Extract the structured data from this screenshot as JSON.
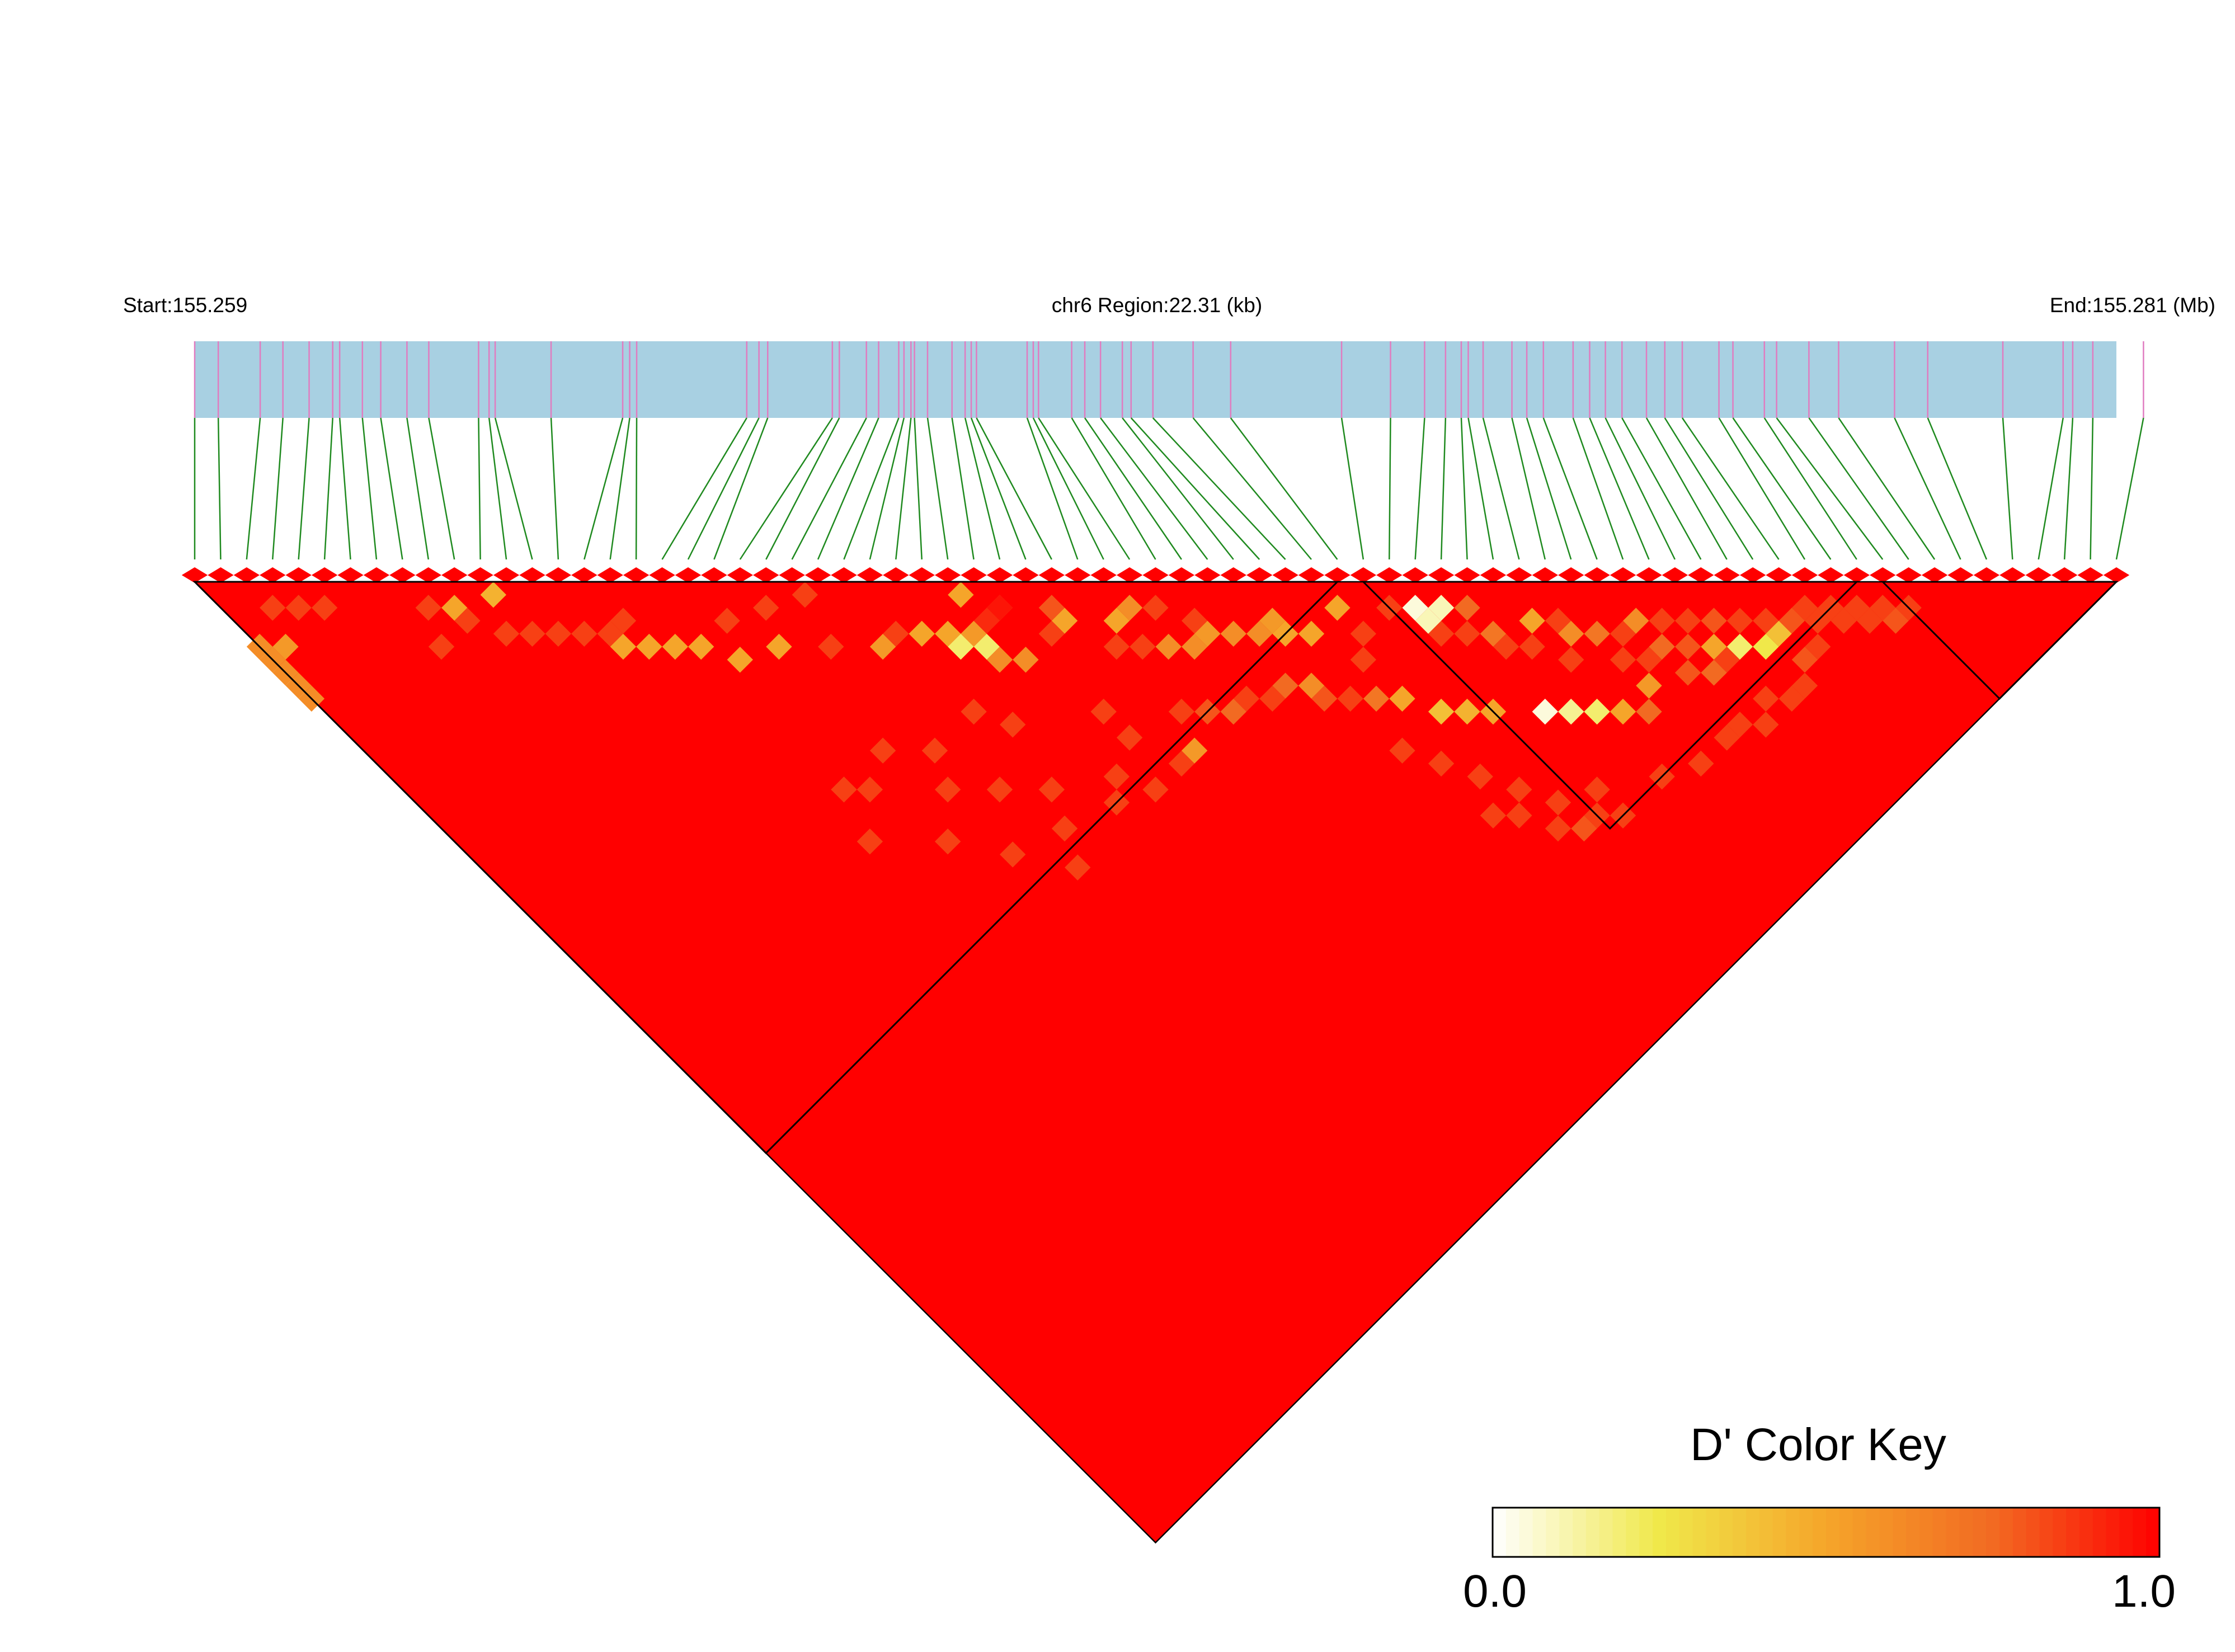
{
  "chart_data": {
    "type": "heatmap",
    "header": {
      "start_label": "Start:155.259",
      "region_label": "chr6 Region:22.31 (kb)",
      "end_label": "End:155.281 (Mb)"
    },
    "region_start_mb": 155.259,
    "region_end_mb": 155.281,
    "snp_count": 75,
    "snp_positions_kb": [
      0.0,
      0.27,
      0.75,
      1.01,
      1.31,
      1.58,
      1.66,
      1.92,
      2.13,
      2.43,
      2.68,
      3.25,
      3.37,
      3.44,
      4.08,
      4.9,
      4.98,
      5.06,
      6.32,
      6.46,
      6.56,
      7.3,
      7.38,
      7.69,
      7.83,
      8.06,
      8.12,
      8.2,
      8.24,
      8.39,
      8.67,
      8.82,
      8.89,
      8.95,
      9.53,
      9.6,
      9.66,
      10.04,
      10.19,
      10.37,
      10.62,
      10.72,
      10.97,
      11.43,
      11.86,
      13.13,
      13.69,
      14.08,
      14.32,
      14.5,
      14.58,
      14.75,
      15.08,
      15.25,
      15.44,
      15.78,
      15.97,
      16.15,
      16.34,
      16.62,
      16.83,
      17.03,
      17.45,
      17.61,
      17.97,
      18.11,
      18.48,
      18.82,
      19.46,
      19.84,
      20.7,
      21.39,
      21.5,
      21.73,
      22.31
    ],
    "color_key": {
      "title": "D' Color Key",
      "min_label": "0.0",
      "max_label": "1.0",
      "min": 0.0,
      "max": 1.0,
      "stops": [
        "#ffffff",
        "#f0e84a",
        "#f5a52a",
        "#f26a22",
        "#ff0000"
      ]
    },
    "default_dprime": 1.0,
    "blocks": [
      {
        "name": "block1",
        "from_snp": 1,
        "to_snp": 45
      },
      {
        "name": "block2",
        "from_snp": 46,
        "to_snp": 65
      },
      {
        "name": "block3",
        "from_snp": 66,
        "to_snp": 75
      }
    ],
    "dprime_cells": [
      [
        1,
        6,
        0.6
      ],
      [
        1,
        7,
        0.6
      ],
      [
        1,
        8,
        0.6
      ],
      [
        1,
        9,
        0.6
      ],
      [
        1,
        10,
        0.6
      ],
      [
        2,
        7,
        0.55
      ],
      [
        3,
        5,
        0.85
      ],
      [
        4,
        6,
        0.85
      ],
      [
        5,
        7,
        0.85
      ],
      [
        9,
        11,
        0.85
      ],
      [
        10,
        12,
        0.5
      ],
      [
        10,
        13,
        0.85
      ],
      [
        11,
        15,
        0.85
      ],
      [
        8,
        13,
        0.85
      ],
      [
        12,
        13,
        0.45
      ],
      [
        12,
        16,
        0.85
      ],
      [
        13,
        17,
        0.85
      ],
      [
        14,
        18,
        0.85
      ],
      [
        15,
        19,
        0.85
      ],
      [
        16,
        19,
        0.85
      ],
      [
        15,
        20,
        0.5
      ],
      [
        16,
        21,
        0.5
      ],
      [
        17,
        22,
        0.5
      ],
      [
        18,
        23,
        0.5
      ],
      [
        19,
        25,
        0.5
      ],
      [
        21,
        26,
        0.5
      ],
      [
        20,
        23,
        0.85
      ],
      [
        22,
        24,
        0.85
      ],
      [
        24,
        25,
        0.85
      ],
      [
        25,
        30,
        0.55
      ],
      [
        23,
        28,
        0.85
      ],
      [
        27,
        31,
        0.5
      ],
      [
        28,
        32,
        0.5
      ],
      [
        29,
        33,
        0.55
      ],
      [
        30,
        33,
        0.9
      ],
      [
        26,
        30,
        0.85
      ],
      [
        31,
        33,
        0.7
      ],
      [
        28,
        33,
        0.2
      ],
      [
        29,
        34,
        0.2
      ],
      [
        29,
        35,
        0.6
      ],
      [
        30,
        36,
        0.6
      ],
      [
        30,
        31,
        0.5
      ],
      [
        31,
        33,
        0.95
      ],
      [
        33,
        36,
        0.5
      ],
      [
        33,
        35,
        0.8
      ],
      [
        35,
        38,
        0.5
      ],
      [
        36,
        38,
        0.6
      ],
      [
        32,
        36,
        0.85
      ],
      [
        37,
        39,
        0.85
      ],
      [
        38,
        41,
        0.85
      ],
      [
        39,
        43,
        0.6
      ],
      [
        40,
        44,
        0.6
      ],
      [
        41,
        44,
        0.55
      ],
      [
        41,
        45,
        0.5
      ],
      [
        42,
        46,
        0.5
      ],
      [
        36,
        41,
        0.6
      ],
      [
        37,
        42,
        0.6
      ],
      [
        38,
        42,
        0.55
      ],
      [
        44,
        46,
        0.5
      ],
      [
        34,
        39,
        0.85
      ],
      [
        35,
        40,
        0.85
      ],
      [
        31,
        41,
        0.85
      ],
      [
        27,
        38,
        0.85
      ],
      [
        26,
        36,
        0.85
      ],
      [
        23,
        36,
        0.85
      ],
      [
        21,
        34,
        0.85
      ],
      [
        19,
        35,
        0.85
      ],
      [
        17,
        37,
        0.85
      ],
      [
        20,
        40,
        0.85
      ],
      [
        22,
        43,
        0.85
      ],
      [
        25,
        44,
        0.85
      ],
      [
        24,
        46,
        0.85
      ],
      [
        28,
        45,
        0.85
      ],
      [
        30,
        46,
        0.85
      ],
      [
        32,
        46,
        0.85
      ],
      [
        43,
        49,
        0.85
      ],
      [
        44,
        48,
        0.85
      ],
      [
        46,
        48,
        0.85
      ],
      [
        47,
        51,
        0.85
      ],
      [
        48,
        52,
        0.85
      ],
      [
        49,
        53,
        0.7
      ],
      [
        47,
        49,
        0.05
      ],
      [
        47,
        50,
        0.1
      ],
      [
        48,
        50,
        0.1
      ],
      [
        49,
        51,
        0.75
      ],
      [
        49,
        54,
        0.85
      ],
      [
        50,
        55,
        0.85
      ],
      [
        51,
        54,
        0.5
      ],
      [
        52,
        55,
        0.85
      ],
      [
        51,
        57,
        0.85
      ],
      [
        52,
        56,
        0.6
      ],
      [
        53,
        57,
        0.7
      ],
      [
        54,
        58,
        0.85
      ],
      [
        55,
        58,
        0.6
      ],
      [
        56,
        59,
        0.85
      ],
      [
        57,
        60,
        0.85
      ],
      [
        58,
        61,
        0.8
      ],
      [
        59,
        62,
        0.85
      ],
      [
        60,
        63,
        0.85
      ],
      [
        61,
        64,
        0.8
      ],
      [
        62,
        64,
        0.85
      ],
      [
        63,
        65,
        0.85
      ],
      [
        58,
        63,
        0.2
      ],
      [
        59,
        64,
        0.25
      ],
      [
        60,
        64,
        0.4
      ],
      [
        57,
        62,
        0.5
      ],
      [
        55,
        60,
        0.75
      ],
      [
        56,
        61,
        0.8
      ],
      [
        57,
        63,
        0.85
      ],
      [
        48,
        58,
        0.05
      ],
      [
        49,
        59,
        0.15
      ],
      [
        50,
        60,
        0.2
      ],
      [
        51,
        61,
        0.5
      ],
      [
        52,
        62,
        0.75
      ],
      [
        53,
        61,
        0.55
      ],
      [
        54,
        60,
        0.85
      ],
      [
        55,
        62,
        0.8
      ],
      [
        56,
        63,
        0.75
      ],
      [
        53,
        59,
        0.85
      ],
      [
        46,
        56,
        0.5
      ],
      [
        45,
        55,
        0.45
      ],
      [
        44,
        54,
        0.4
      ],
      [
        43,
        52,
        0.5
      ],
      [
        42,
        51,
        0.7
      ],
      [
        41,
        50,
        0.85
      ],
      [
        40,
        49,
        0.8
      ],
      [
        40,
        48,
        0.6
      ],
      [
        39,
        47,
        0.75
      ],
      [
        38,
        47,
        0.85
      ],
      [
        37,
        46,
        0.85
      ],
      [
        36,
        46,
        0.75
      ],
      [
        35,
        45,
        0.8
      ],
      [
        34,
        44,
        0.85
      ],
      [
        45,
        62,
        0.85
      ],
      [
        44,
        60,
        0.85
      ],
      [
        43,
        58,
        0.85
      ],
      [
        46,
        64,
        0.85
      ],
      [
        47,
        65,
        0.85
      ],
      [
        42,
        56,
        0.85
      ],
      [
        41,
        54,
        0.85
      ],
      [
        62,
        65,
        0.85
      ],
      [
        63,
        66,
        0.85
      ],
      [
        64,
        67,
        0.85
      ],
      [
        65,
        67,
        0.85
      ],
      [
        64,
        66,
        0.85
      ],
      [
        66,
        68,
        0.85
      ],
      [
        65,
        68,
        0.8
      ],
      [
        61,
        66,
        0.85
      ],
      [
        60,
        66,
        0.8
      ],
      [
        59,
        67,
        0.85
      ],
      [
        56,
        67,
        0.85
      ],
      [
        54,
        66,
        0.85
      ],
      [
        52,
        66,
        0.85
      ],
      [
        50,
        65,
        0.85
      ],
      [
        47,
        63,
        0.85
      ],
      [
        45,
        64,
        0.8
      ],
      [
        44,
        63,
        0.85
      ],
      [
        43,
        61,
        0.85
      ],
      [
        42,
        60,
        0.85
      ],
      [
        55,
        66,
        0.85
      ],
      [
        57,
        66,
        0.85
      ],
      [
        58,
        67,
        0.85
      ],
      [
        33,
        46,
        0.55
      ],
      [
        31,
        43,
        0.85
      ],
      [
        29,
        44,
        0.85
      ],
      [
        26,
        42,
        0.85
      ],
      [
        24,
        40,
        0.85
      ],
      [
        22,
        38,
        0.85
      ],
      [
        18,
        34,
        0.85
      ]
    ]
  }
}
